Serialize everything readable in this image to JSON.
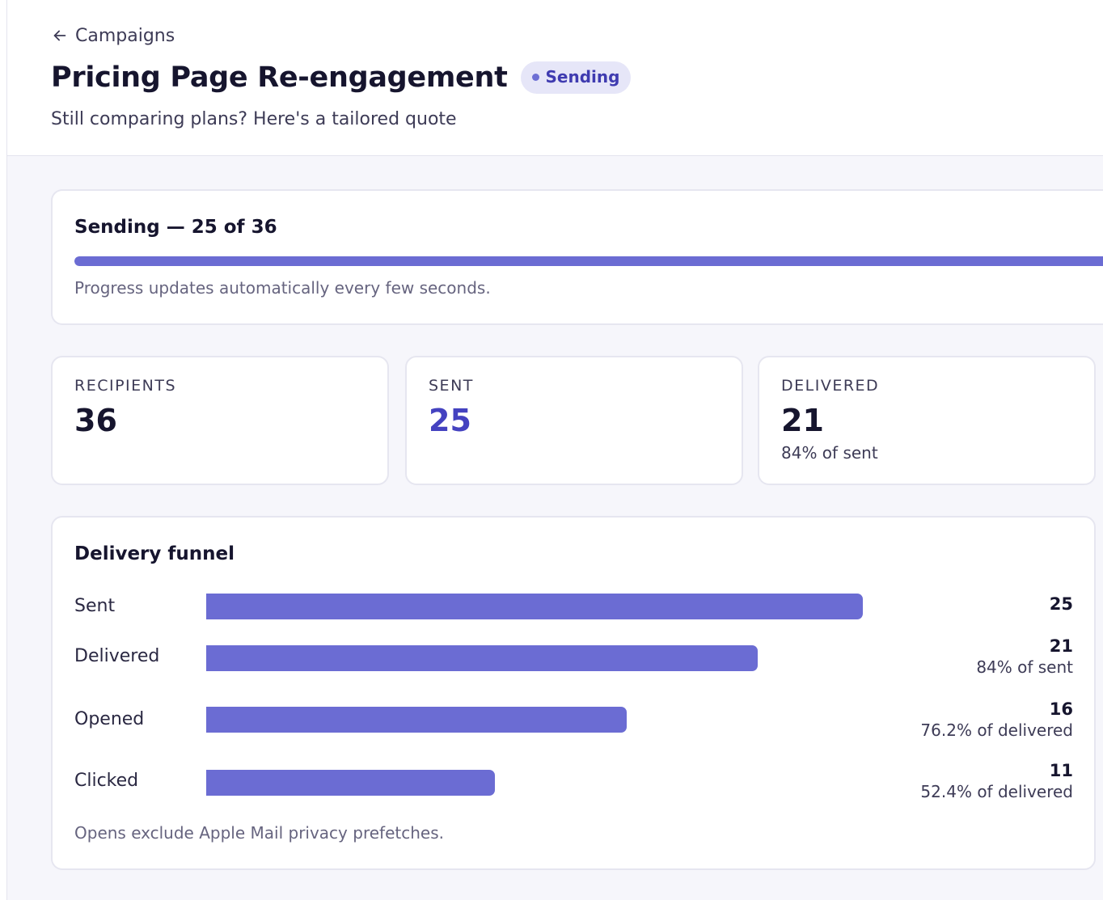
{
  "nav": {
    "back_label": "Campaigns"
  },
  "campaign": {
    "title": "Pricing Page Re-engagement",
    "status": "Sending",
    "subject": "Still comparing plans? Here's a tailored quote"
  },
  "progress": {
    "title": "Sending — 25 of 36",
    "sent": 25,
    "total": 36,
    "note": "Progress updates automatically every few seconds."
  },
  "stats": [
    {
      "label": "RECIPIENTS",
      "value": "36",
      "sub": ""
    },
    {
      "label": "SENT",
      "value": "25",
      "sub": ""
    },
    {
      "label": "DELIVERED",
      "value": "21",
      "sub": "84% of sent"
    }
  ],
  "funnel": {
    "title": "Delivery funnel",
    "note": "Opens exclude Apple Mail privacy prefetches.",
    "rows": [
      {
        "label": "Sent",
        "count": "25",
        "pct": ""
      },
      {
        "label": "Delivered",
        "count": "21",
        "pct": "84% of sent"
      },
      {
        "label": "Opened",
        "count": "16",
        "pct": "76.2% of delivered"
      },
      {
        "label": "Clicked",
        "count": "11",
        "pct": "52.4% of delivered"
      }
    ]
  },
  "chart_data": {
    "type": "bar",
    "categories": [
      "Sent",
      "Delivered",
      "Opened",
      "Clicked"
    ],
    "values": [
      25,
      21,
      16,
      11
    ],
    "title": "Delivery funnel"
  },
  "colors": {
    "accent": "#6b6cd3",
    "badge_bg": "#e6e6f8",
    "badge_text": "#3f3bb0"
  }
}
